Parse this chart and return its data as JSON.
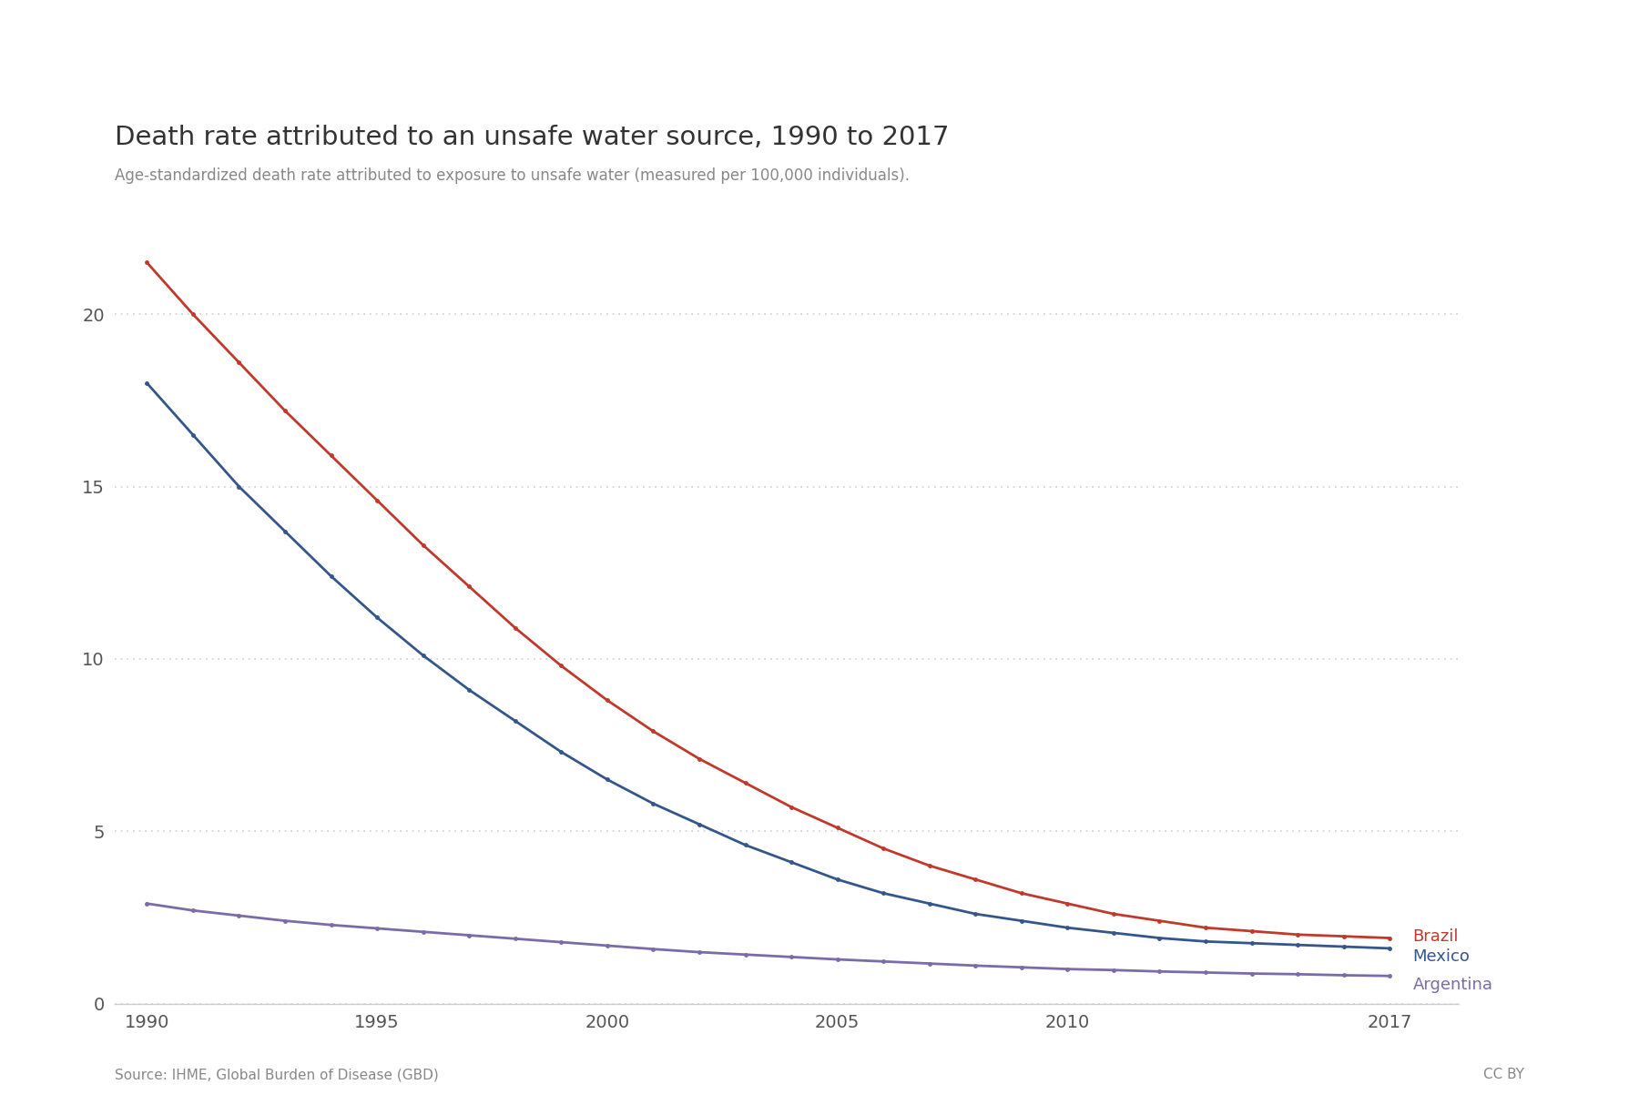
{
  "title": "Death rate attributed to an unsafe water source, 1990 to 2017",
  "subtitle": "Age-standardized death rate attributed to exposure to unsafe water (measured per 100,000 individuals).",
  "source_text": "Source: IHME, Global Burden of Disease (GBD)",
  "cc_text": "CC BY",
  "years": [
    1990,
    1991,
    1992,
    1993,
    1994,
    1995,
    1996,
    1997,
    1998,
    1999,
    2000,
    2001,
    2002,
    2003,
    2004,
    2005,
    2006,
    2007,
    2008,
    2009,
    2010,
    2011,
    2012,
    2013,
    2014,
    2015,
    2016,
    2017
  ],
  "brazil": [
    21.5,
    20.0,
    18.6,
    17.2,
    15.9,
    14.6,
    13.3,
    12.1,
    10.9,
    9.8,
    8.8,
    7.9,
    7.1,
    6.4,
    5.7,
    5.1,
    4.5,
    4.0,
    3.6,
    3.2,
    2.9,
    2.6,
    2.4,
    2.2,
    2.1,
    2.0,
    1.95,
    1.9
  ],
  "mexico": [
    18.0,
    16.5,
    15.0,
    13.7,
    12.4,
    11.2,
    10.1,
    9.1,
    8.2,
    7.3,
    6.5,
    5.8,
    5.2,
    4.6,
    4.1,
    3.6,
    3.2,
    2.9,
    2.6,
    2.4,
    2.2,
    2.05,
    1.9,
    1.8,
    1.75,
    1.7,
    1.65,
    1.6
  ],
  "argentina": [
    2.9,
    2.7,
    2.55,
    2.4,
    2.28,
    2.18,
    2.08,
    1.98,
    1.88,
    1.78,
    1.68,
    1.58,
    1.49,
    1.42,
    1.35,
    1.28,
    1.22,
    1.16,
    1.1,
    1.05,
    1.0,
    0.97,
    0.93,
    0.9,
    0.87,
    0.85,
    0.82,
    0.8
  ],
  "brazil_color": "#c0392b",
  "mexico_color": "#34568b",
  "argentina_color": "#7b6ba8",
  "background_color": "#ffffff",
  "grid_color": "#d0d0d0",
  "ylim": [
    0,
    22
  ],
  "yticks": [
    0,
    5,
    10,
    15,
    20
  ],
  "xticks": [
    1990,
    1995,
    2000,
    2005,
    2010,
    2017
  ],
  "owid_bg_color": "#1a3560",
  "owid_text_color": "#ffffff"
}
